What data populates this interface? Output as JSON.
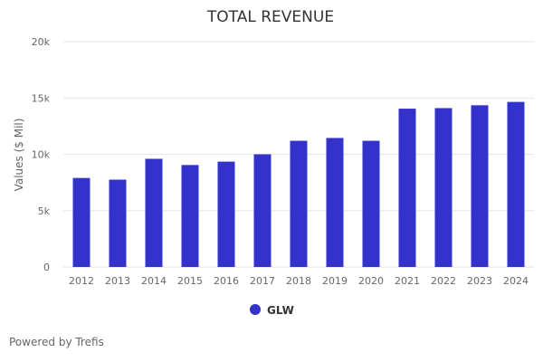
{
  "chart_data": {
    "type": "bar",
    "title": "TOTAL REVENUE",
    "xlabel": "",
    "ylabel": "Values ($ Mil)",
    "categories": [
      "2012",
      "2013",
      "2014",
      "2015",
      "2016",
      "2017",
      "2018",
      "2019",
      "2020",
      "2021",
      "2022",
      "2023",
      "2024"
    ],
    "series": [
      {
        "name": "GLW",
        "color": "#3333cc",
        "values": [
          7900,
          7750,
          9600,
          9050,
          9350,
          10000,
          11200,
          11450,
          11200,
          14050,
          14100,
          14350,
          14650
        ]
      }
    ],
    "ylim": [
      0,
      20000
    ],
    "yticks": [
      0,
      5000,
      10000,
      15000,
      20000
    ],
    "ytick_labels": [
      "0",
      "5k",
      "10k",
      "15k",
      "20k"
    ],
    "grid": true,
    "legend_position": "bottom-center"
  },
  "footer": {
    "credit": "Powered by Trefis"
  }
}
